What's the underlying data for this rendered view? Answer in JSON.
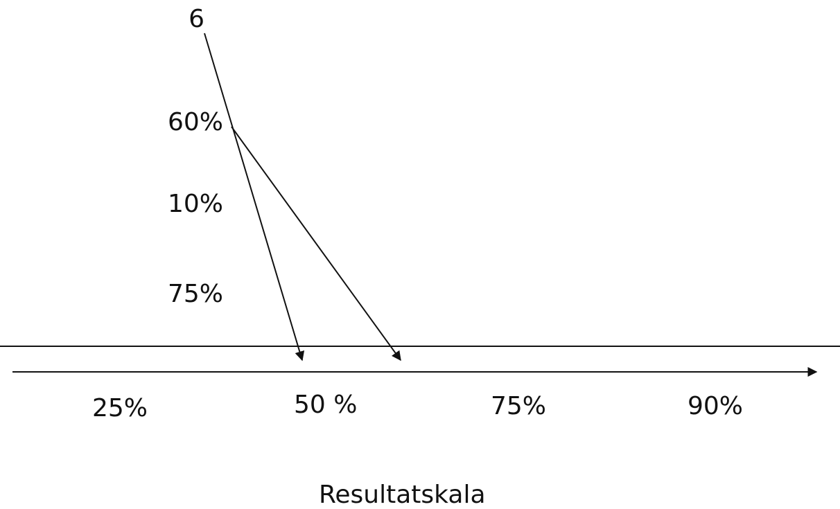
{
  "left_labels": {
    "top": "6",
    "l1": "60%",
    "l2": "10%",
    "l3": "75%"
  },
  "scale_labels": [
    "25%",
    "50 %",
    "75%",
    "90%"
  ],
  "caption": "Resultatskala",
  "colors": {
    "ink": "#111111",
    "background": "#ffffff"
  }
}
